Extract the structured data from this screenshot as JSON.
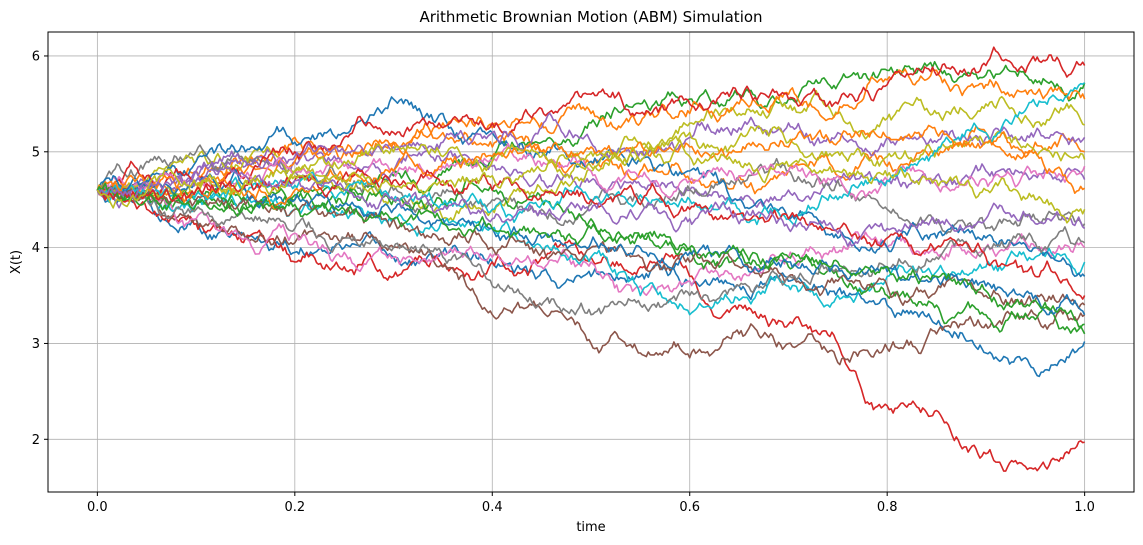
{
  "chart_data": {
    "type": "line",
    "title": "Arithmetic Brownian Motion (ABM) Simulation",
    "xlabel": "time",
    "ylabel": "X(t)",
    "xlim": [
      -0.05,
      1.05
    ],
    "ylim": [
      1.45,
      6.25
    ],
    "xticks": [
      0.0,
      0.2,
      0.4,
      0.6,
      0.8,
      1.0
    ],
    "xtick_labels": [
      "0.0",
      "0.2",
      "0.4",
      "0.6",
      "0.8",
      "1.0"
    ],
    "yticks": [
      2,
      3,
      4,
      5,
      6
    ],
    "ytick_labels": [
      "2",
      "3",
      "4",
      "5",
      "6"
    ],
    "grid": true,
    "x": [
      0.0,
      0.05,
      0.1,
      0.15,
      0.2,
      0.25,
      0.3,
      0.35,
      0.4,
      0.45,
      0.5,
      0.55,
      0.6,
      0.65,
      0.7,
      0.75,
      0.8,
      0.85,
      0.9,
      0.95,
      1.0
    ],
    "series": [
      {
        "color": "#1f77b4",
        "values": [
          4.6,
          4.5,
          4.3,
          4.1,
          3.95,
          4.0,
          3.9,
          3.95,
          3.85,
          3.75,
          3.7,
          3.7,
          3.65,
          3.6,
          3.65,
          3.55,
          3.4,
          3.2,
          2.9,
          2.7,
          3.02
        ]
      },
      {
        "color": "#ff7f0e",
        "values": [
          4.6,
          4.7,
          4.8,
          4.95,
          5.15,
          5.0,
          5.1,
          5.2,
          5.05,
          5.0,
          4.9,
          4.8,
          4.7,
          4.75,
          4.8,
          4.75,
          4.85,
          5.0,
          5.2,
          5.1,
          5.0
        ]
      },
      {
        "color": "#2ca02c",
        "values": [
          4.6,
          4.55,
          4.5,
          4.45,
          4.5,
          4.6,
          4.75,
          4.8,
          4.95,
          5.1,
          5.3,
          5.5,
          5.55,
          5.6,
          5.55,
          5.7,
          5.85,
          5.9,
          5.8,
          5.75,
          5.72
        ]
      },
      {
        "color": "#d62728",
        "values": [
          4.6,
          4.4,
          4.25,
          4.1,
          3.85,
          3.8,
          3.7,
          3.8,
          3.85,
          3.9,
          3.9,
          3.8,
          3.7,
          3.4,
          3.2,
          3.0,
          2.35,
          2.3,
          1.85,
          1.7,
          1.97
        ]
      },
      {
        "color": "#9467bd",
        "values": [
          4.6,
          4.7,
          4.8,
          4.85,
          4.9,
          4.85,
          4.8,
          4.9,
          4.85,
          4.7,
          4.7,
          4.65,
          4.6,
          4.5,
          4.6,
          4.7,
          4.7,
          4.75,
          4.8,
          4.75,
          4.71
        ]
      },
      {
        "color": "#8c564b",
        "values": [
          4.6,
          4.5,
          4.3,
          4.1,
          4.05,
          4.1,
          4.0,
          3.8,
          3.3,
          3.35,
          3.0,
          2.9,
          2.85,
          3.1,
          3.0,
          2.8,
          2.95,
          3.1,
          3.2,
          3.3,
          3.3
        ]
      },
      {
        "color": "#e377c2",
        "values": [
          4.6,
          4.5,
          4.3,
          4.1,
          4.15,
          3.95,
          3.9,
          3.95,
          3.9,
          3.8,
          3.85,
          3.6,
          3.65,
          3.7,
          3.9,
          3.95,
          4.0,
          3.95,
          4.0,
          4.0,
          4.0
        ]
      },
      {
        "color": "#7f7f7f",
        "values": [
          4.6,
          4.9,
          5.0,
          4.9,
          4.8,
          4.7,
          4.6,
          4.6,
          4.5,
          4.4,
          4.45,
          4.5,
          4.6,
          4.7,
          4.8,
          4.7,
          4.4,
          4.3,
          4.2,
          4.3,
          4.25
        ]
      },
      {
        "color": "#bcbd22",
        "values": [
          4.6,
          4.7,
          4.9,
          4.95,
          4.8,
          4.6,
          4.5,
          4.3,
          4.4,
          4.6,
          4.8,
          5.0,
          5.3,
          5.4,
          5.45,
          5.4,
          5.35,
          5.4,
          5.5,
          5.3,
          5.28
        ]
      },
      {
        "color": "#17becf",
        "values": [
          4.6,
          4.5,
          4.45,
          4.5,
          4.4,
          4.35,
          4.3,
          4.25,
          4.2,
          4.0,
          3.9,
          3.5,
          3.3,
          3.45,
          3.6,
          3.5,
          3.7,
          3.75,
          3.8,
          3.9,
          3.85
        ]
      },
      {
        "color": "#1f77b4",
        "values": [
          4.6,
          4.7,
          4.9,
          5.0,
          5.1,
          5.2,
          5.55,
          5.4,
          5.2,
          5.0,
          4.9,
          4.9,
          4.8,
          4.5,
          4.3,
          4.1,
          4.0,
          4.1,
          4.1,
          4.0,
          3.7
        ]
      },
      {
        "color": "#ff7f0e",
        "values": [
          4.6,
          4.55,
          4.6,
          4.8,
          4.9,
          5.0,
          5.1,
          5.3,
          5.25,
          5.3,
          5.4,
          5.3,
          5.4,
          5.5,
          5.6,
          5.4,
          5.75,
          5.85,
          5.7,
          5.6,
          5.55
        ]
      },
      {
        "color": "#2ca02c",
        "values": [
          4.6,
          4.5,
          4.55,
          4.5,
          4.55,
          4.45,
          4.5,
          4.45,
          4.6,
          4.5,
          4.3,
          4.1,
          4.0,
          3.9,
          3.8,
          3.7,
          3.5,
          3.4,
          3.3,
          3.25,
          3.2
        ]
      },
      {
        "color": "#d62728",
        "values": [
          4.6,
          4.75,
          4.7,
          4.75,
          5.0,
          5.15,
          5.2,
          5.25,
          5.3,
          5.45,
          5.6,
          5.4,
          5.5,
          5.6,
          5.55,
          5.5,
          5.7,
          5.8,
          5.9,
          5.95,
          5.9
        ]
      },
      {
        "color": "#9467bd",
        "values": [
          4.6,
          4.65,
          4.8,
          4.9,
          4.95,
          5.0,
          5.05,
          5.1,
          5.2,
          5.25,
          5.1,
          5.0,
          5.15,
          5.25,
          5.3,
          5.2,
          5.15,
          5.1,
          5.15,
          5.2,
          5.15
        ]
      },
      {
        "color": "#8c564b",
        "values": [
          4.6,
          4.55,
          4.5,
          4.45,
          4.4,
          4.35,
          4.3,
          4.1,
          4.0,
          3.95,
          4.0,
          3.9,
          3.85,
          3.8,
          3.7,
          3.65,
          3.6,
          3.55,
          3.5,
          3.45,
          3.4
        ]
      },
      {
        "color": "#e377c2",
        "values": [
          4.6,
          4.65,
          4.7,
          4.75,
          4.8,
          4.85,
          4.8,
          4.85,
          4.9,
          4.85,
          4.8,
          4.75,
          4.7,
          4.75,
          4.8,
          4.75,
          4.7,
          4.65,
          4.7,
          4.8,
          4.85
        ]
      },
      {
        "color": "#7f7f7f",
        "values": [
          4.6,
          4.5,
          4.4,
          4.3,
          4.2,
          4.1,
          4.0,
          3.9,
          3.6,
          3.4,
          3.3,
          3.4,
          3.5,
          3.6,
          3.7,
          3.75,
          3.8,
          3.9,
          4.0,
          4.05,
          4.05
        ]
      },
      {
        "color": "#bcbd22",
        "values": [
          4.6,
          4.65,
          4.6,
          4.7,
          4.8,
          4.9,
          5.0,
          4.95,
          4.9,
          4.95,
          5.0,
          5.1,
          5.2,
          5.15,
          5.1,
          5.0,
          4.95,
          5.0,
          5.1,
          5.0,
          4.92
        ]
      },
      {
        "color": "#17becf",
        "values": [
          4.6,
          4.6,
          4.55,
          4.6,
          4.65,
          4.55,
          4.5,
          4.45,
          4.4,
          4.45,
          4.5,
          4.55,
          4.5,
          4.4,
          4.3,
          4.5,
          4.7,
          5.0,
          5.2,
          5.5,
          5.72
        ]
      },
      {
        "color": "#1f77b4",
        "values": [
          4.6,
          4.65,
          4.7,
          4.6,
          4.5,
          4.45,
          4.4,
          4.3,
          4.2,
          4.1,
          4.05,
          4.0,
          3.95,
          3.9,
          3.85,
          3.8,
          3.75,
          3.7,
          3.6,
          3.5,
          3.3
        ]
      },
      {
        "color": "#ff7f0e",
        "values": [
          4.6,
          4.65,
          4.6,
          4.55,
          4.6,
          4.7,
          4.8,
          4.9,
          4.95,
          5.0,
          5.05,
          5.1,
          5.05,
          5.0,
          5.05,
          5.1,
          5.15,
          5.2,
          5.1,
          5.0,
          4.62
        ]
      },
      {
        "color": "#2ca02c",
        "values": [
          4.6,
          4.5,
          4.45,
          4.4,
          4.45,
          4.4,
          4.3,
          4.25,
          4.2,
          4.15,
          4.2,
          4.1,
          4.0,
          3.95,
          3.9,
          3.85,
          3.8,
          3.7,
          3.55,
          3.45,
          3.1
        ]
      },
      {
        "color": "#d62728",
        "values": [
          4.6,
          4.55,
          4.6,
          4.65,
          4.7,
          4.75,
          4.7,
          4.65,
          4.6,
          4.55,
          4.5,
          4.45,
          4.4,
          4.35,
          4.3,
          4.2,
          4.1,
          4.0,
          3.9,
          3.7,
          3.5
        ]
      },
      {
        "color": "#9467bd",
        "values": [
          4.6,
          4.65,
          4.7,
          4.75,
          4.7,
          4.6,
          4.5,
          4.4,
          4.3,
          4.35,
          4.4,
          4.35,
          4.3,
          4.25,
          4.2,
          4.15,
          4.2,
          4.25,
          4.3,
          4.25,
          4.2
        ]
      },
      {
        "color": "#bcbd22",
        "values": [
          4.6,
          4.6,
          4.65,
          4.7,
          4.75,
          4.7,
          4.65,
          4.7,
          4.75,
          4.8,
          4.85,
          4.9,
          4.95,
          4.9,
          4.85,
          4.8,
          4.75,
          4.7,
          4.6,
          4.5,
          4.4
        ]
      }
    ]
  }
}
